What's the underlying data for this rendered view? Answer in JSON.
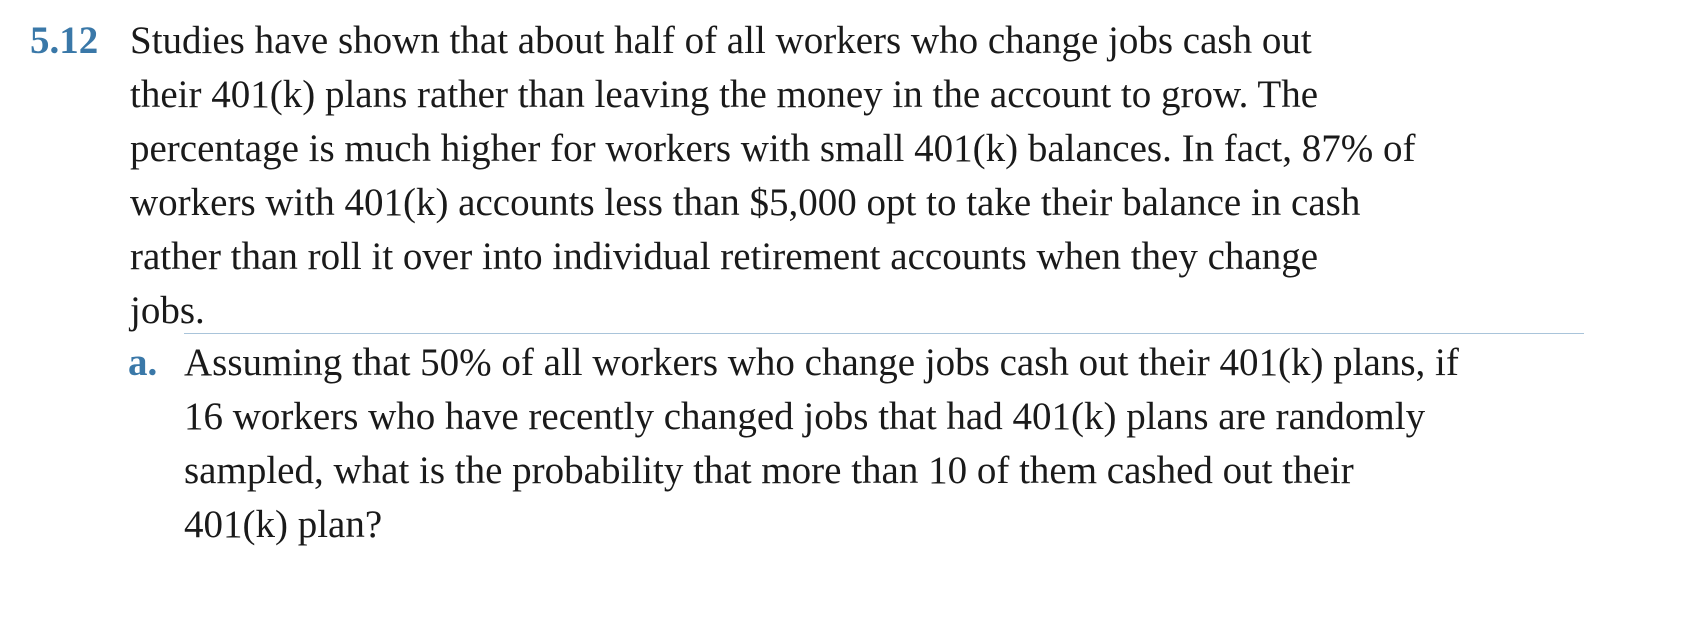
{
  "problem": {
    "number": "5.12",
    "lines": [
      "Studies have shown that about half of all workers who change jobs cash out",
      "their 401(k) plans rather than leaving the money in the account to grow. The",
      "percentage is much higher for workers with small 401(k) balances. In fact, 87% of",
      "workers with 401(k) accounts less than $5,000 opt to take their balance in cash",
      "rather than roll it over into individual retirement accounts when they change",
      "jobs."
    ]
  },
  "part_a": {
    "label": "a.",
    "lines": [
      "Assuming that 50% of all workers who change jobs cash out their 401(k) plans, if",
      "16 workers who have recently changed jobs that had 401(k) plans are randomly",
      "sampled, what is the probability that more than 10 of them cashed out their",
      "401(k) plan?"
    ]
  }
}
